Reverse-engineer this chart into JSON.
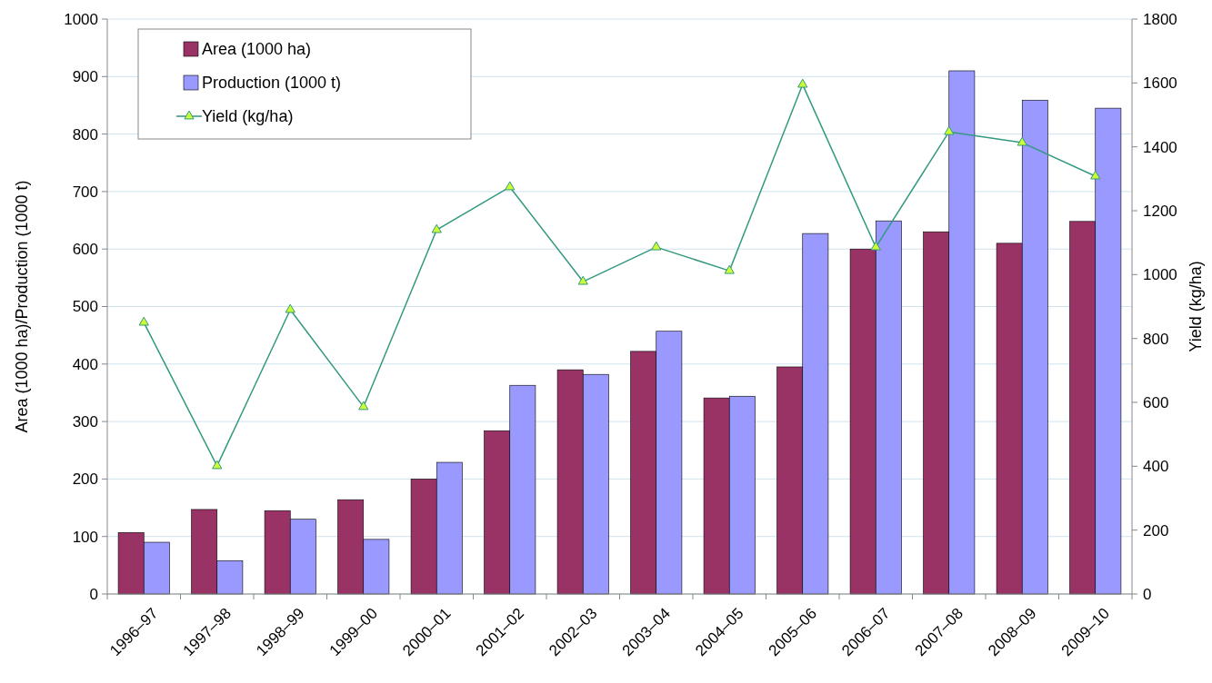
{
  "chart_data": {
    "type": "bar",
    "ylabel": "Area (1000 ha)/Production (1000 t)",
    "y2label": "Yield (kg/ha)",
    "categories": [
      "1996–97",
      "1997–98",
      "1998–99",
      "1999–00",
      "2000–01",
      "2001–02",
      "2002–03",
      "2003–04",
      "2004–05",
      "2005–06",
      "2006–07",
      "2007–08",
      "2008–09",
      "2009–10"
    ],
    "series": [
      {
        "name": "Area (1000 ha)",
        "color": "#993366",
        "values": [
          107,
          147,
          145,
          164,
          200,
          284,
          390,
          422,
          341,
          395,
          600,
          630,
          610,
          648
        ]
      },
      {
        "name": "Production (1000 t)",
        "color": "#9999ff",
        "values": [
          90,
          58,
          130,
          95,
          229,
          363,
          382,
          457,
          344,
          627,
          649,
          910,
          859,
          845
        ]
      },
      {
        "name": "Yield (kg/ha)",
        "type": "line",
        "axis": "y2",
        "color": "#339980",
        "marker": "triangle",
        "values": [
          850,
          401,
          890,
          586,
          1140,
          1274,
          978,
          1086,
          1012,
          1595,
          1086,
          1447,
          1413,
          1308
        ]
      }
    ],
    "ylim": [
      0,
      1000
    ],
    "yticks": [
      0,
      100,
      200,
      300,
      400,
      500,
      600,
      700,
      800,
      900,
      1000
    ],
    "y2lim": [
      0,
      1800
    ],
    "y2ticks": [
      0,
      200,
      400,
      600,
      800,
      1000,
      1200,
      1400,
      1600,
      1800
    ],
    "grid": "y",
    "legend": "top left"
  }
}
